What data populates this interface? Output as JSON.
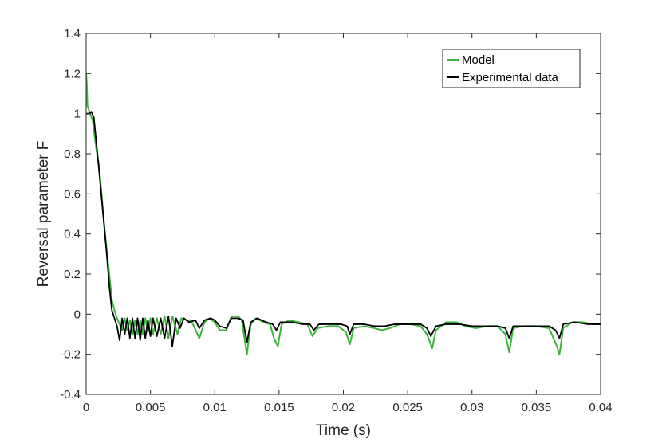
{
  "chart_data": {
    "type": "line",
    "title": "",
    "xlabel": "Time (s)",
    "ylabel": "Reversal parameter F",
    "xlim": [
      0,
      0.04
    ],
    "ylim": [
      -0.4,
      1.4
    ],
    "xticks": [
      0,
      0.005,
      0.01,
      0.015,
      0.02,
      0.025,
      0.03,
      0.035,
      0.04
    ],
    "xtick_labels": [
      "0",
      "0.005",
      "0.01",
      "0.015",
      "0.02",
      "0.025",
      "0.03",
      "0.035",
      "0.04"
    ],
    "yticks": [
      -0.4,
      -0.2,
      0,
      0.2,
      0.4,
      0.6,
      0.8,
      1,
      1.2,
      1.4
    ],
    "ytick_labels": [
      "-0.4",
      "-0.2",
      "0",
      "0.2",
      "0.4",
      "0.6",
      "0.8",
      "1",
      "1.2",
      "1.4"
    ],
    "grid": false,
    "legend_position": "top-right",
    "series": [
      {
        "name": "Model",
        "color": "#3cb43c",
        "points": [
          [
            0,
            1.2
          ],
          [
            5e-05,
            1.15
          ],
          [
            0.0001,
            1.04
          ],
          [
            0.0002,
            1.02
          ],
          [
            0.0003,
            1.0
          ],
          [
            0.0005,
            0.97
          ],
          [
            0.0008,
            0.82
          ],
          [
            0.001,
            0.74
          ],
          [
            0.0012,
            0.6
          ],
          [
            0.0014,
            0.45
          ],
          [
            0.0016,
            0.32
          ],
          [
            0.0018,
            0.2
          ],
          [
            0.002,
            0.07
          ],
          [
            0.0022,
            0.02
          ],
          [
            0.0024,
            -0.02
          ],
          [
            0.0026,
            -0.05
          ],
          [
            0.0028,
            -0.08
          ],
          [
            0.003,
            -0.02
          ],
          [
            0.0032,
            -0.08
          ],
          [
            0.0034,
            -0.03
          ],
          [
            0.0036,
            -0.1
          ],
          [
            0.0038,
            -0.03
          ],
          [
            0.004,
            -0.1
          ],
          [
            0.0042,
            -0.03
          ],
          [
            0.0044,
            -0.1
          ],
          [
            0.0046,
            -0.02
          ],
          [
            0.0048,
            -0.09
          ],
          [
            0.005,
            -0.02
          ],
          [
            0.0052,
            -0.1
          ],
          [
            0.0055,
            -0.02
          ],
          [
            0.0058,
            -0.1
          ],
          [
            0.0061,
            -0.01
          ],
          [
            0.0064,
            -0.12
          ],
          [
            0.0067,
            -0.01
          ],
          [
            0.0071,
            -0.1
          ],
          [
            0.0074,
            -0.02
          ],
          [
            0.0078,
            -0.03
          ],
          [
            0.0081,
            -0.03
          ],
          [
            0.0083,
            -0.05
          ],
          [
            0.0088,
            -0.12
          ],
          [
            0.0092,
            -0.04
          ],
          [
            0.0096,
            -0.02
          ],
          [
            0.01,
            -0.04
          ],
          [
            0.0104,
            -0.08
          ],
          [
            0.0109,
            -0.08
          ],
          [
            0.0113,
            -0.01
          ],
          [
            0.0118,
            -0.01
          ],
          [
            0.0121,
            -0.03
          ],
          [
            0.0125,
            -0.2
          ],
          [
            0.0128,
            -0.05
          ],
          [
            0.0132,
            -0.02
          ],
          [
            0.0138,
            -0.04
          ],
          [
            0.0143,
            -0.05
          ],
          [
            0.0146,
            -0.12
          ],
          [
            0.0149,
            -0.16
          ],
          [
            0.0152,
            -0.05
          ],
          [
            0.0158,
            -0.03
          ],
          [
            0.0165,
            -0.04
          ],
          [
            0.0172,
            -0.05
          ],
          [
            0.0176,
            -0.11
          ],
          [
            0.018,
            -0.07
          ],
          [
            0.0188,
            -0.06
          ],
          [
            0.0196,
            -0.06
          ],
          [
            0.0202,
            -0.09
          ],
          [
            0.0205,
            -0.15
          ],
          [
            0.0208,
            -0.07
          ],
          [
            0.0216,
            -0.06
          ],
          [
            0.0224,
            -0.07
          ],
          [
            0.023,
            -0.08
          ],
          [
            0.0236,
            -0.07
          ],
          [
            0.0244,
            -0.05
          ],
          [
            0.0252,
            -0.05
          ],
          [
            0.026,
            -0.06
          ],
          [
            0.0265,
            -0.1
          ],
          [
            0.0269,
            -0.17
          ],
          [
            0.0272,
            -0.08
          ],
          [
            0.028,
            -0.04
          ],
          [
            0.0288,
            -0.04
          ],
          [
            0.0295,
            -0.06
          ],
          [
            0.0303,
            -0.07
          ],
          [
            0.0312,
            -0.06
          ],
          [
            0.032,
            -0.06
          ],
          [
            0.0326,
            -0.1
          ],
          [
            0.0329,
            -0.19
          ],
          [
            0.0332,
            -0.07
          ],
          [
            0.034,
            -0.06
          ],
          [
            0.035,
            -0.06
          ],
          [
            0.036,
            -0.07
          ],
          [
            0.0366,
            -0.16
          ],
          [
            0.0368,
            -0.2
          ],
          [
            0.0371,
            -0.07
          ],
          [
            0.0378,
            -0.04
          ],
          [
            0.0386,
            -0.04
          ],
          [
            0.0394,
            -0.05
          ],
          [
            0.04,
            -0.05
          ]
        ]
      },
      {
        "name": "Experimental data",
        "color": "#000000",
        "points": [
          [
            0,
            1.0
          ],
          [
            0.0002,
            1.0
          ],
          [
            0.0004,
            1.01
          ],
          [
            0.0006,
            0.98
          ],
          [
            0.0008,
            0.85
          ],
          [
            0.001,
            0.72
          ],
          [
            0.0012,
            0.58
          ],
          [
            0.0014,
            0.44
          ],
          [
            0.0016,
            0.3
          ],
          [
            0.0018,
            0.14
          ],
          [
            0.002,
            0.02
          ],
          [
            0.0022,
            -0.02
          ],
          [
            0.0024,
            -0.06
          ],
          [
            0.0026,
            -0.13
          ],
          [
            0.0028,
            -0.02
          ],
          [
            0.003,
            -0.1
          ],
          [
            0.0032,
            -0.02
          ],
          [
            0.0034,
            -0.12
          ],
          [
            0.0036,
            -0.02
          ],
          [
            0.0038,
            -0.12
          ],
          [
            0.004,
            -0.02
          ],
          [
            0.0042,
            -0.13
          ],
          [
            0.0044,
            -0.02
          ],
          [
            0.0046,
            -0.12
          ],
          [
            0.0048,
            -0.03
          ],
          [
            0.005,
            -0.11
          ],
          [
            0.0052,
            -0.02
          ],
          [
            0.0055,
            -0.11
          ],
          [
            0.0058,
            -0.02
          ],
          [
            0.0061,
            -0.12
          ],
          [
            0.0064,
            -0.01
          ],
          [
            0.0067,
            -0.16
          ],
          [
            0.007,
            -0.02
          ],
          [
            0.0073,
            -0.07
          ],
          [
            0.0076,
            -0.02
          ],
          [
            0.008,
            -0.04
          ],
          [
            0.0085,
            -0.03
          ],
          [
            0.0088,
            -0.07
          ],
          [
            0.0092,
            -0.03
          ],
          [
            0.0097,
            -0.02
          ],
          [
            0.01,
            -0.03
          ],
          [
            0.0104,
            -0.06
          ],
          [
            0.0109,
            -0.07
          ],
          [
            0.0113,
            -0.02
          ],
          [
            0.0118,
            -0.02
          ],
          [
            0.0122,
            -0.03
          ],
          [
            0.0125,
            -0.14
          ],
          [
            0.0128,
            -0.04
          ],
          [
            0.0133,
            -0.02
          ],
          [
            0.014,
            -0.04
          ],
          [
            0.0145,
            -0.05
          ],
          [
            0.0148,
            -0.08
          ],
          [
            0.0151,
            -0.04
          ],
          [
            0.016,
            -0.04
          ],
          [
            0.0168,
            -0.05
          ],
          [
            0.0174,
            -0.05
          ],
          [
            0.0177,
            -0.08
          ],
          [
            0.0181,
            -0.05
          ],
          [
            0.019,
            -0.05
          ],
          [
            0.0198,
            -0.05
          ],
          [
            0.0203,
            -0.06
          ],
          [
            0.0205,
            -0.1
          ],
          [
            0.0208,
            -0.05
          ],
          [
            0.0216,
            -0.05
          ],
          [
            0.0224,
            -0.06
          ],
          [
            0.0232,
            -0.06
          ],
          [
            0.024,
            -0.05
          ],
          [
            0.025,
            -0.05
          ],
          [
            0.026,
            -0.05
          ],
          [
            0.0265,
            -0.07
          ],
          [
            0.0268,
            -0.11
          ],
          [
            0.0272,
            -0.06
          ],
          [
            0.028,
            -0.05
          ],
          [
            0.029,
            -0.05
          ],
          [
            0.03,
            -0.06
          ],
          [
            0.031,
            -0.06
          ],
          [
            0.032,
            -0.06
          ],
          [
            0.0326,
            -0.07
          ],
          [
            0.0329,
            -0.12
          ],
          [
            0.0332,
            -0.06
          ],
          [
            0.034,
            -0.06
          ],
          [
            0.035,
            -0.06
          ],
          [
            0.036,
            -0.06
          ],
          [
            0.0365,
            -0.08
          ],
          [
            0.0368,
            -0.12
          ],
          [
            0.0371,
            -0.05
          ],
          [
            0.038,
            -0.04
          ],
          [
            0.039,
            -0.05
          ],
          [
            0.04,
            -0.05
          ]
        ]
      }
    ]
  }
}
